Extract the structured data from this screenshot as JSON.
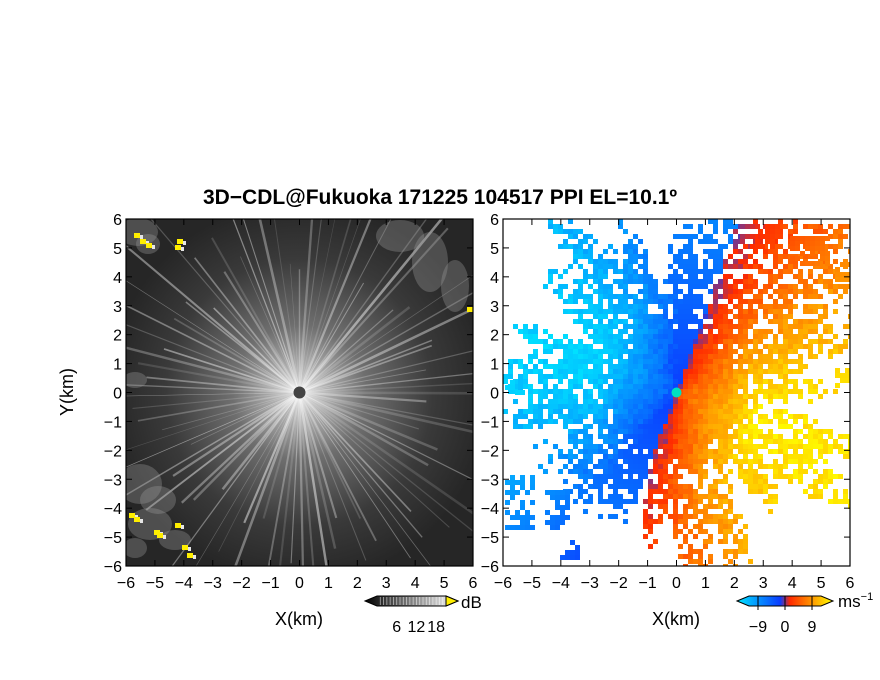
{
  "figure": {
    "title": "3D−CDL@Fukuoka 171225 104517 PPI EL=10.1º"
  },
  "chart_data": [
    {
      "type": "heatmap",
      "panel": "left",
      "quantity": "dB",
      "xlabel": "X(km)",
      "ylabel": "Y(km)",
      "xlim": [
        -6,
        6
      ],
      "ylim": [
        -6,
        6
      ],
      "xticks": [
        -6,
        -5,
        -4,
        -3,
        -2,
        -1,
        0,
        1,
        2,
        3,
        4,
        5,
        6
      ],
      "yticks": [
        -6,
        -5,
        -4,
        -3,
        -2,
        -1,
        0,
        1,
        2,
        3,
        4,
        5,
        6
      ],
      "colorbar": {
        "unit": "dB",
        "ticks": [
          6,
          12,
          18
        ],
        "colors": [
          "#000000",
          "#ffffff"
        ],
        "highlight_color": "#ffee00"
      },
      "radar_center": [
        0,
        0
      ]
    },
    {
      "type": "heatmap",
      "panel": "right",
      "quantity": "ms⁻¹",
      "xlabel": "X(km)",
      "ylabel": "",
      "xlim": [
        -6,
        6
      ],
      "ylim": [
        -6,
        6
      ],
      "xticks": [
        -6,
        -5,
        -4,
        -3,
        -2,
        -1,
        0,
        1,
        2,
        3,
        4,
        5,
        6
      ],
      "yticks": [
        -6,
        -5,
        -4,
        -3,
        -2,
        -1,
        0,
        1,
        2,
        3,
        4,
        5,
        6
      ],
      "colorbar": {
        "unit": "ms",
        "unit_exp": "−1",
        "ticks": [
          -9,
          0,
          9
        ],
        "tick_labels": [
          "−9",
          "0",
          "9"
        ],
        "colors": [
          "#00e5ff",
          "#0a3cff",
          "#ff2a00",
          "#ffff00"
        ]
      },
      "radar_center": [
        0,
        0
      ]
    }
  ]
}
